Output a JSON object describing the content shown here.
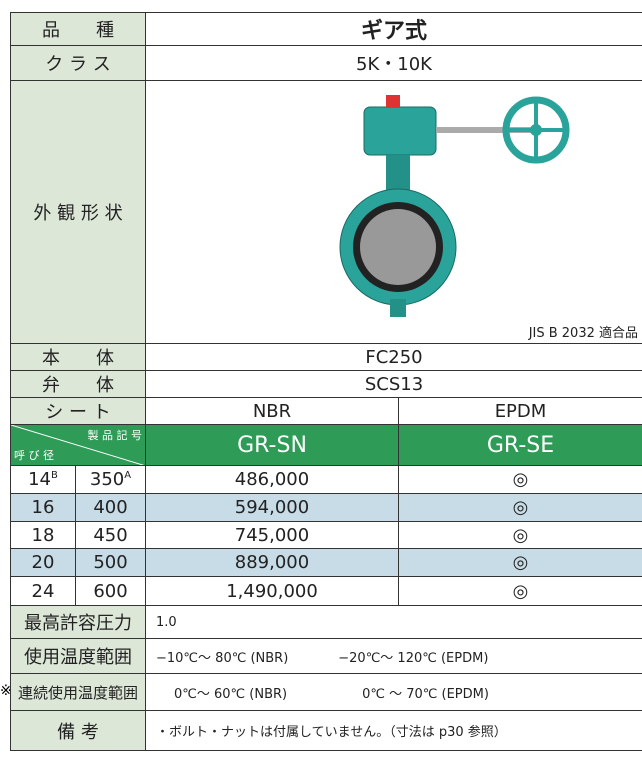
{
  "spec": {
    "type_label": "品　　種",
    "type": "ギア式",
    "class_label": "ク ラ ス",
    "class": "5K・10K",
    "appearance_label": "外 観 形 状",
    "jis": "JIS B 2032 適合品",
    "body_label": "本　　体",
    "body": "FC250",
    "disc_label": "弁　　体",
    "disc": "SCS13",
    "seat_label": "シ ー ト",
    "seats": [
      "NBR",
      "EPDM"
    ]
  },
  "price_table": {
    "header_code": "製 品 記 号",
    "header_size": "呼 び 径",
    "codes": [
      "GR-SN",
      "GR-SE"
    ],
    "rows": [
      {
        "inch": "14",
        "inch_sup": "B",
        "mm": "350",
        "mm_sup": "A",
        "nbr": "486,000",
        "epdm": "◎"
      },
      {
        "inch": "16",
        "mm": "400",
        "nbr": "594,000",
        "epdm": "◎"
      },
      {
        "inch": "18",
        "mm": "450",
        "nbr": "745,000",
        "epdm": "◎"
      },
      {
        "inch": "20",
        "mm": "500",
        "nbr": "889,000",
        "epdm": "◎"
      },
      {
        "inch": "24",
        "mm": "600",
        "nbr": "1,490,000",
        "epdm": "◎"
      }
    ]
  },
  "notes": [
    {
      "label": "最高許容圧力",
      "text": "1.0"
    },
    {
      "label": "使用温度範囲",
      "texts": [
        "−10℃〜 80℃ (NBR)",
        "−20℃〜 120℃ (EPDM)"
      ]
    },
    {
      "mark": "※",
      "label": "連続使用温度範囲",
      "texts": [
        "0℃〜 60℃ (NBR)",
        "0℃ 〜 70℃ (EPDM)"
      ]
    },
    {
      "label": "備 考",
      "text": "・ボルト・ナットは付属していません。（寸法は p30 参照）"
    }
  ]
}
